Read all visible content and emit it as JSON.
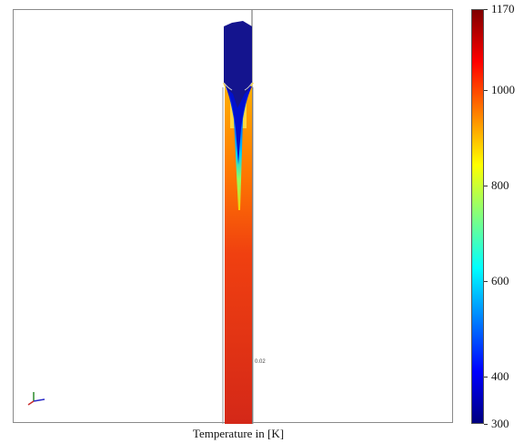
{
  "caption": "Temperature in [K]",
  "colorbar": {
    "min": 300,
    "max": 1170,
    "ticks": [
      {
        "label": "1170",
        "value": 1170
      },
      {
        "label": "1000",
        "value": 1000
      },
      {
        "label": "800",
        "value": 800
      },
      {
        "label": "600",
        "value": 600
      },
      {
        "label": "400",
        "value": 400
      },
      {
        "label": "300",
        "value": 300
      }
    ],
    "colormap": [
      "#00007f",
      "#0000ff",
      "#0080ff",
      "#00ffff",
      "#80ff80",
      "#ffff00",
      "#ff8000",
      "#ff0000",
      "#7f0000"
    ]
  },
  "annotations": {
    "small_label": "0.02"
  },
  "colors": {
    "frame": "#8a8a8a",
    "cold": "#1a1a8c",
    "hot": "#d42818"
  }
}
